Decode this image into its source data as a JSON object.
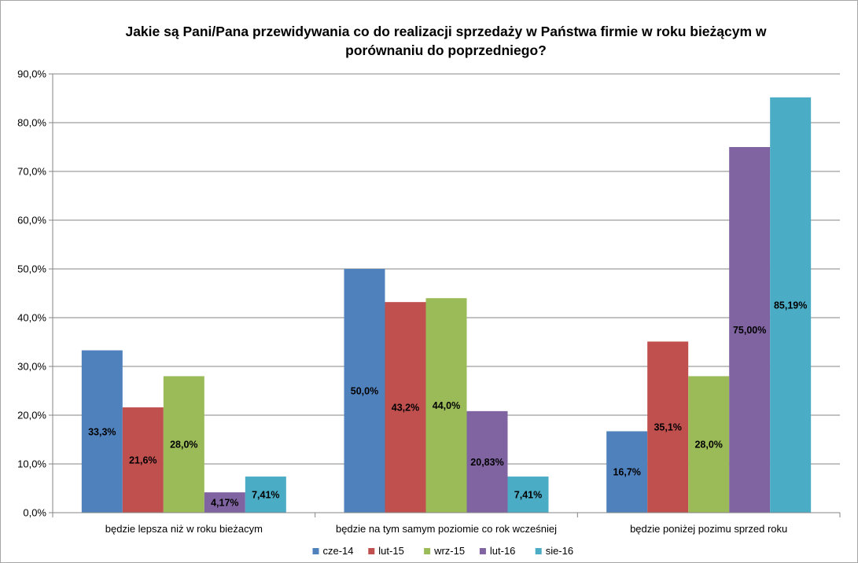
{
  "chart_data": {
    "type": "bar",
    "title_lines": [
      "Jakie są Pani/Pana przewidywania co do realizacji sprzedaży w Państwa firmie w roku bieżącym w",
      "porównaniu do poprzedniego?"
    ],
    "xlabel": "",
    "ylabel": "",
    "ylim": [
      0,
      90
    ],
    "ytick_labels": [
      "0,0%",
      "10,0%",
      "20,0%",
      "30,0%",
      "40,0%",
      "50,0%",
      "60,0%",
      "70,0%",
      "80,0%",
      "90,0%"
    ],
    "categories": [
      "będzie lepsza niż w roku bieżacym",
      "będzie na tym samym poziomie co rok wcześniej",
      "będzie poniżej pozimu sprzed roku"
    ],
    "grid": true,
    "legend_position": "bottom",
    "series": [
      {
        "name": "cze-14",
        "color": "#4f81bd",
        "values": [
          33.3,
          50.0,
          16.7
        ],
        "labels": [
          "33,3%",
          "50,0%",
          "16,7%"
        ]
      },
      {
        "name": "lut-15",
        "color": "#c0504d",
        "values": [
          21.6,
          43.2,
          35.1
        ],
        "labels": [
          "21,6%",
          "43,2%",
          "35,1%"
        ]
      },
      {
        "name": "wrz-15",
        "color": "#9bbb59",
        "values": [
          28.0,
          44.0,
          28.0
        ],
        "labels": [
          "28,0%",
          "44,0%",
          "28,0%"
        ]
      },
      {
        "name": "lut-16",
        "color": "#8064a2",
        "values": [
          4.17,
          20.83,
          75.0
        ],
        "labels": [
          "4,17%",
          "20,83%",
          "75,00%"
        ]
      },
      {
        "name": "sie-16",
        "color": "#4bacc6",
        "values": [
          7.41,
          7.41,
          85.19
        ],
        "labels": [
          "7,41%",
          "7,41%",
          "85,19%"
        ]
      }
    ]
  }
}
